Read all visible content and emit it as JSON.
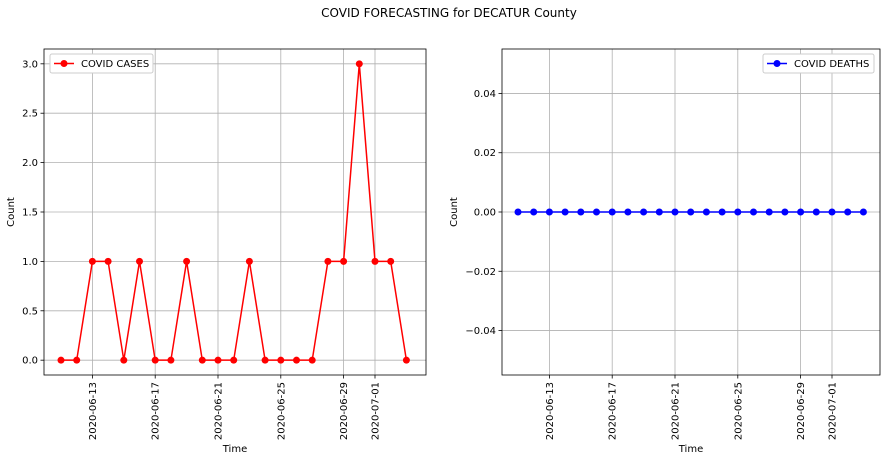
{
  "title": "COVID FORECASTING for DECATUR County",
  "chart_data": [
    {
      "type": "line",
      "xlabel": "Time",
      "ylabel": "Count",
      "x": [
        "2020-06-11",
        "2020-06-12",
        "2020-06-13",
        "2020-06-14",
        "2020-06-15",
        "2020-06-16",
        "2020-06-17",
        "2020-06-18",
        "2020-06-19",
        "2020-06-20",
        "2020-06-21",
        "2020-06-22",
        "2020-06-23",
        "2020-06-24",
        "2020-06-25",
        "2020-06-26",
        "2020-06-27",
        "2020-06-28",
        "2020-06-29",
        "2020-06-30",
        "2020-07-01",
        "2020-07-02",
        "2020-07-03"
      ],
      "series": [
        {
          "name": "COVID CASES",
          "color": "#ff0000",
          "marker": "circle",
          "values": [
            0,
            0,
            1,
            1,
            0,
            1,
            0,
            0,
            1,
            0,
            0,
            0,
            1,
            0,
            0,
            0,
            0,
            1,
            1,
            3,
            1,
            1,
            0
          ]
        }
      ],
      "xticks": [
        "2020-06-13",
        "2020-06-17",
        "2020-06-21",
        "2020-06-25",
        "2020-06-29",
        "2020-07-01"
      ],
      "yticks": [
        "0.0",
        "0.5",
        "1.0",
        "1.5",
        "2.0",
        "2.5",
        "3.0"
      ],
      "ylim": [
        -0.15,
        3.15
      ],
      "grid": true,
      "legend": "upper left"
    },
    {
      "type": "line",
      "xlabel": "Time",
      "ylabel": "Count",
      "x": [
        "2020-06-11",
        "2020-06-12",
        "2020-06-13",
        "2020-06-14",
        "2020-06-15",
        "2020-06-16",
        "2020-06-17",
        "2020-06-18",
        "2020-06-19",
        "2020-06-20",
        "2020-06-21",
        "2020-06-22",
        "2020-06-23",
        "2020-06-24",
        "2020-06-25",
        "2020-06-26",
        "2020-06-27",
        "2020-06-28",
        "2020-06-29",
        "2020-06-30",
        "2020-07-01",
        "2020-07-02",
        "2020-07-03"
      ],
      "series": [
        {
          "name": "COVID DEATHS",
          "color": "#0000ff",
          "marker": "circle",
          "values": [
            0,
            0,
            0,
            0,
            0,
            0,
            0,
            0,
            0,
            0,
            0,
            0,
            0,
            0,
            0,
            0,
            0,
            0,
            0,
            0,
            0,
            0,
            0
          ]
        }
      ],
      "xticks": [
        "2020-06-13",
        "2020-06-17",
        "2020-06-21",
        "2020-06-25",
        "2020-06-29",
        "2020-07-01"
      ],
      "yticks": [
        "0.04",
        "0.02",
        "0.00",
        "−0.02",
        "−0.04"
      ],
      "ylim": [
        -0.055,
        0.055
      ],
      "grid": true,
      "legend": "upper right"
    }
  ]
}
